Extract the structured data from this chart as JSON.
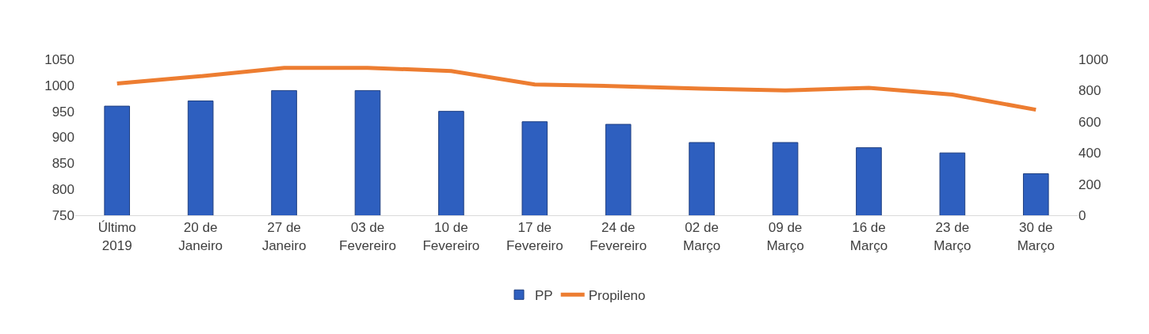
{
  "chart_data": {
    "type": "bar",
    "categories": [
      "Último 2019",
      "20 de Janeiro",
      "27 de Janeiro",
      "03 de Fevereiro",
      "10 de Fevereiro",
      "17 de Fevereiro",
      "24 de Fevereiro",
      "02 de Março",
      "09 de Março",
      "16 de Março",
      "23 de Março",
      "30 de Março"
    ],
    "series": [
      {
        "name": "PP",
        "color": "#2e5fbf",
        "values": [
          960,
          970,
          990,
          990,
          950,
          930,
          925,
          890,
          890,
          880,
          870,
          830
        ]
      },
      {
        "name": "Propileno",
        "type": "line",
        "axis": "y2",
        "color": "#ed7d31",
        "values": [
          845,
          892,
          946,
          946,
          925,
          839,
          828,
          812,
          801,
          817,
          774,
          677
        ]
      }
    ],
    "ylim": [
      750,
      1050
    ],
    "yticks": [
      750,
      800,
      850,
      900,
      950,
      1000,
      1050
    ],
    "y2lim": [
      0,
      1000
    ],
    "y2ticks": [
      0,
      200,
      400,
      600,
      800,
      1000
    ],
    "grid": false,
    "legend": "bottom",
    "marker": "none",
    "line_style": "solid"
  }
}
